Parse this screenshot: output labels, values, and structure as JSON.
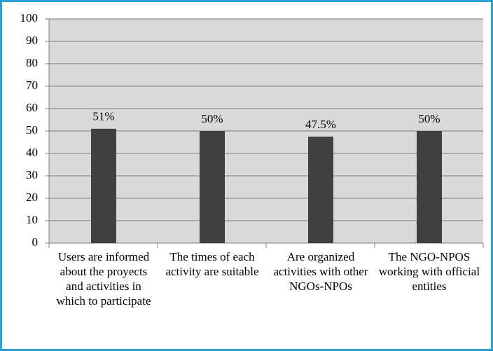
{
  "chart_data": {
    "type": "bar",
    "categories": [
      "Users are informed about the proyects and activities in which to participate",
      "The times of each activity are suitable",
      "Are organized activities with other NGOs-NPOs",
      "The NGO-NPOS working with official entities"
    ],
    "values": [
      51,
      50,
      47.5,
      50
    ],
    "value_labels": [
      "51%",
      "50%",
      "47.5%",
      "50%"
    ],
    "color": "#404040",
    "ylim": [
      0,
      100
    ],
    "yticks": [
      0,
      10,
      20,
      30,
      40,
      50,
      60,
      70,
      80,
      90,
      100
    ],
    "grid": true
  }
}
